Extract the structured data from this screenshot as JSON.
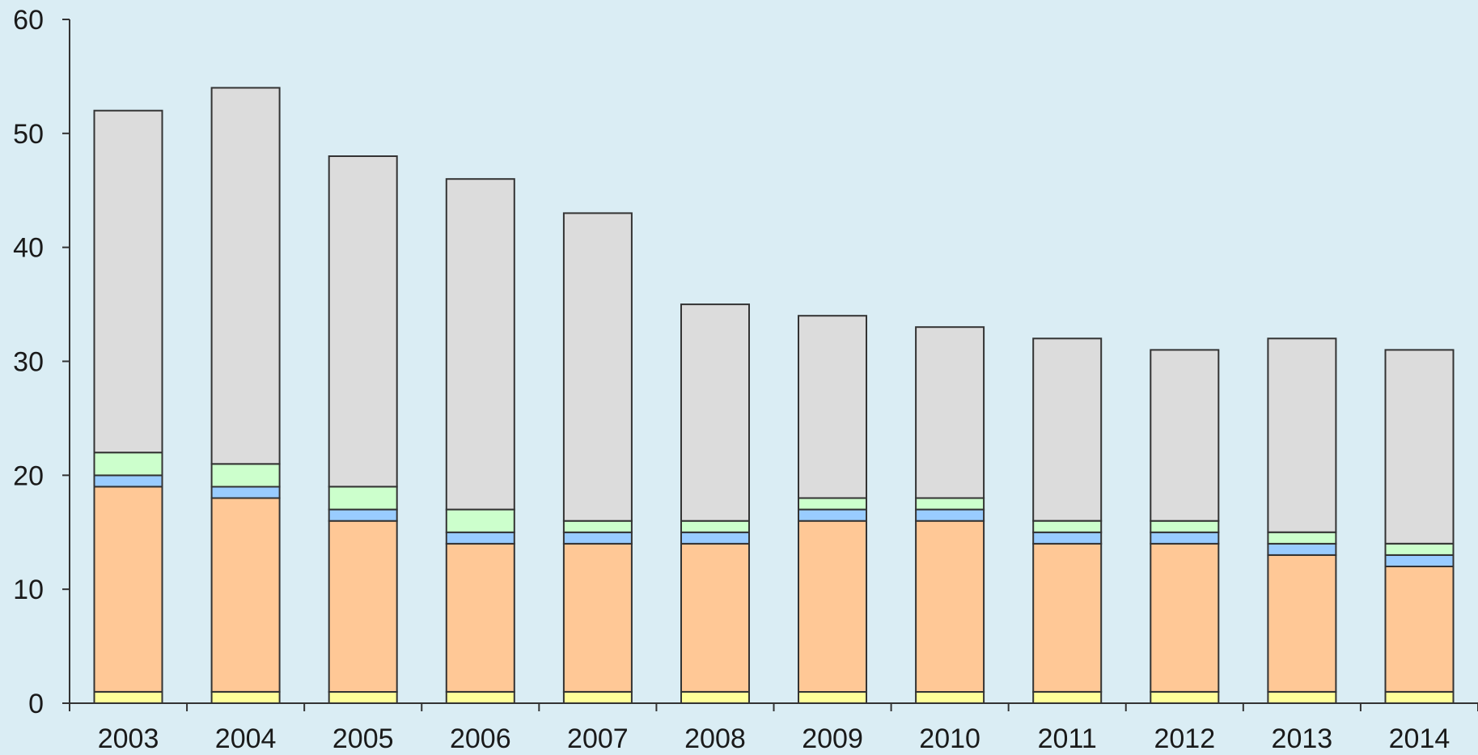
{
  "chart_data": {
    "type": "bar",
    "stacked": true,
    "title": "",
    "xlabel": "",
    "ylabel": "",
    "ylim": [
      0,
      60
    ],
    "yticks": [
      "0",
      "10",
      "20",
      "30",
      "40",
      "50",
      "60"
    ],
    "grid": false,
    "legend": "none",
    "categories": [
      "2003",
      "2004",
      "2005",
      "2006",
      "2007",
      "2008",
      "2009",
      "2010",
      "2011",
      "2012",
      "2013",
      "2014"
    ],
    "series": [
      {
        "color": "#ffff99",
        "values": [
          1,
          1,
          1,
          1,
          1,
          1,
          1,
          1,
          1,
          1,
          1,
          1
        ]
      },
      {
        "color": "#ffc896",
        "values": [
          18,
          17,
          15,
          13,
          13,
          13,
          15,
          15,
          13,
          13,
          12,
          11
        ]
      },
      {
        "color": "#99ccff",
        "values": [
          1,
          1,
          1,
          1,
          1,
          1,
          1,
          1,
          1,
          1,
          1,
          1
        ]
      },
      {
        "color": "#ccffcc",
        "values": [
          2,
          2,
          2,
          2,
          1,
          1,
          1,
          1,
          1,
          1,
          1,
          1
        ]
      },
      {
        "color": "#dcdcdc",
        "values": [
          30,
          33,
          29,
          29,
          27,
          19,
          16,
          15,
          16,
          15,
          17,
          17
        ]
      }
    ]
  }
}
